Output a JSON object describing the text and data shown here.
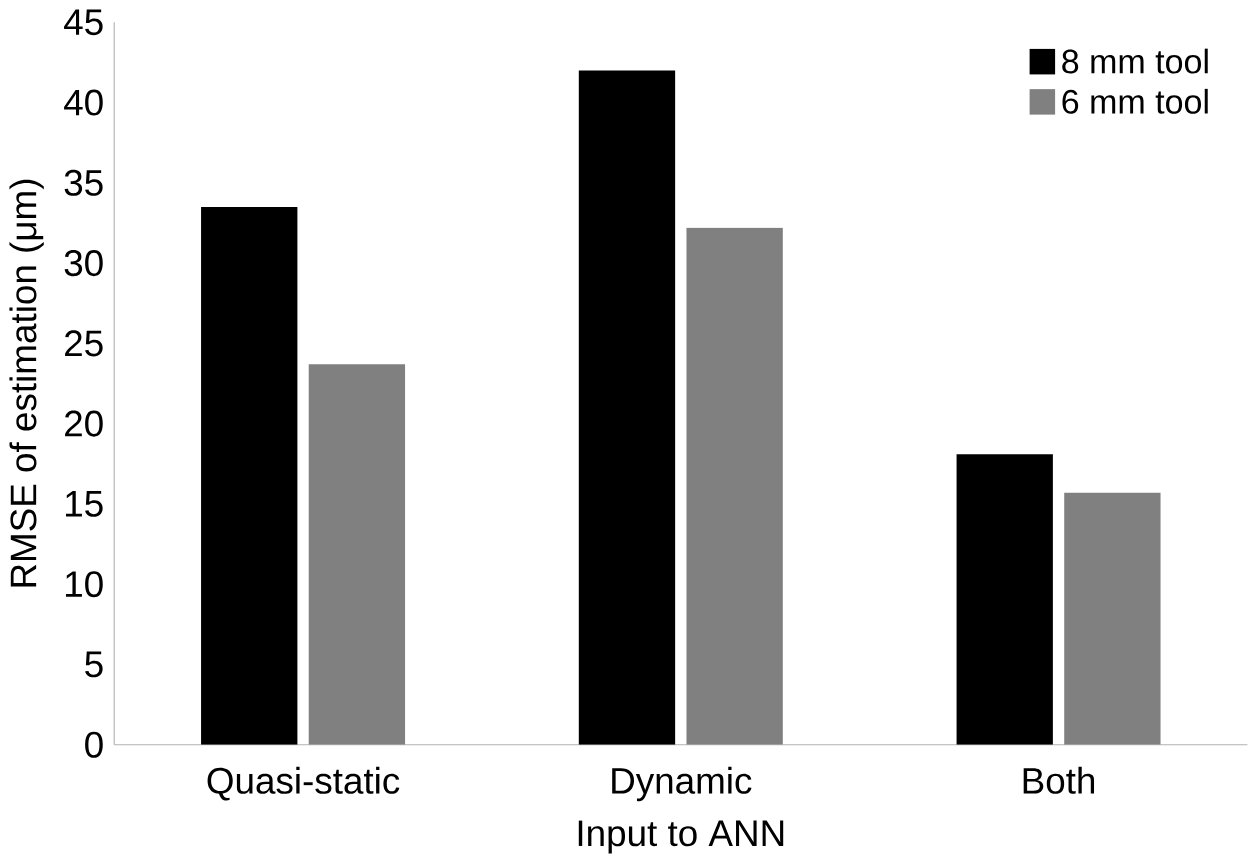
{
  "chart_data": {
    "type": "bar",
    "xlabel": "Input to ANN",
    "ylabel": "RMSE of estimation (μm)",
    "categories": [
      "Quasi-static",
      "Dynamic",
      "Both"
    ],
    "series": [
      {
        "name": "8 mm tool",
        "color": "#000000",
        "values": [
          33.5,
          42.0,
          18.1
        ]
      },
      {
        "name": "6 mm tool",
        "color": "#808080",
        "values": [
          23.7,
          32.2,
          15.7
        ]
      }
    ],
    "ylim": [
      0,
      45
    ],
    "yticks": [
      0,
      5,
      10,
      15,
      20,
      25,
      30,
      35,
      40,
      45
    ],
    "grid": false,
    "legend": "top right"
  }
}
